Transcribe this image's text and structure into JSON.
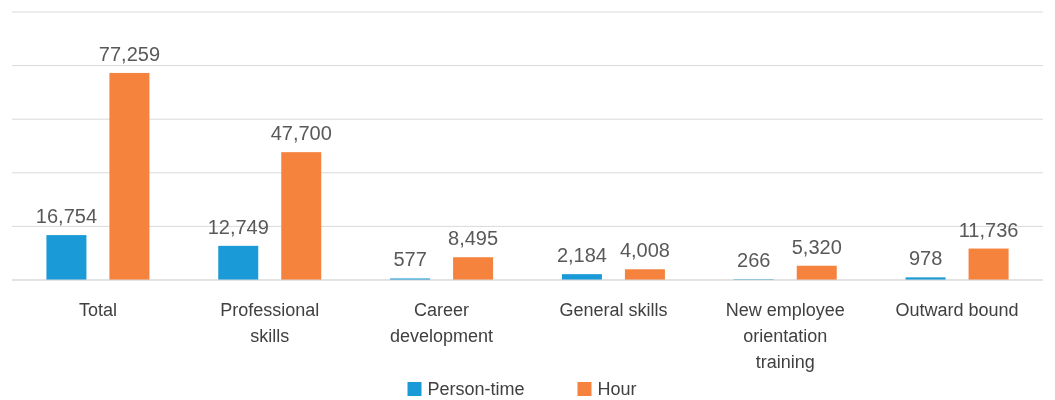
{
  "chart_data": {
    "type": "bar",
    "categories": [
      "Total",
      "Professional skills",
      "Career development",
      "General skills",
      "New employee orientation training",
      "Outward bound"
    ],
    "series": [
      {
        "name": "Person-time",
        "color": "#1a9bd7",
        "values": [
          16754,
          12749,
          577,
          2184,
          266,
          978
        ],
        "value_labels": [
          "16,754",
          "12,749",
          "577",
          "2,184",
          "266",
          "978"
        ]
      },
      {
        "name": "Hour",
        "color": "#f5823d",
        "values": [
          77259,
          47700,
          8495,
          4008,
          5320,
          11736
        ],
        "value_labels": [
          "77,259",
          "47,700",
          "8,495",
          "4,008",
          "5,320",
          "11,736"
        ]
      }
    ],
    "ylim": [
      0,
      100000
    ],
    "yticks": [
      {
        "value": 0,
        "label": null
      },
      {
        "value": 20000,
        "label": null
      },
      {
        "value": 40000,
        "label": null
      },
      {
        "value": 60000,
        "label": null
      },
      {
        "value": 80000,
        "label": null
      },
      {
        "value": 100000,
        "label": null
      }
    ],
    "grid": "y",
    "tick_labels": "x",
    "legend": "bottom"
  }
}
